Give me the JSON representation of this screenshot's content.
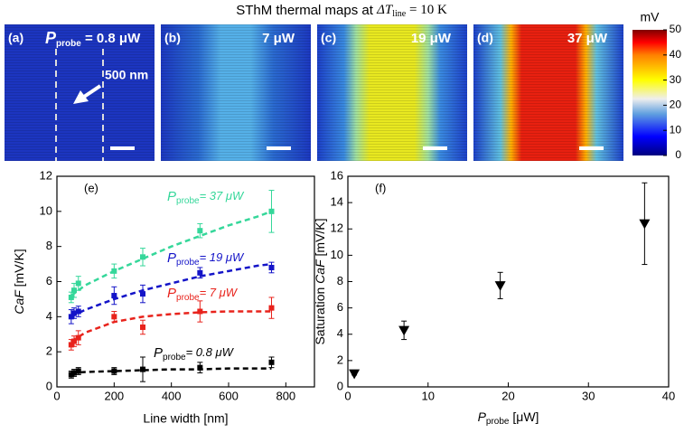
{
  "title": {
    "prefix": "SThM thermal maps at ",
    "symbol": "ΔT",
    "sub": "line",
    "suffix": " = 10 K"
  },
  "maps": [
    {
      "label": "(a)",
      "symbol": "P",
      "sub": "probe",
      "power": " = 0.8 μW",
      "annotation": "500 nm"
    },
    {
      "label": "(b)",
      "power": "7 μW"
    },
    {
      "label": "(c)",
      "power": "19 μW"
    },
    {
      "label": "(d)",
      "power": "37 μW"
    }
  ],
  "colorbar": {
    "unit": "mV",
    "lim": [
      0,
      50
    ],
    "ticks": [
      0,
      10,
      20,
      30,
      40,
      50
    ]
  },
  "chart_data": [
    {
      "type": "line",
      "panel": "(e)",
      "xlabel": "Line width [nm]",
      "ylabel_italic": "CaF",
      "ylabel_rest": " [mV/K]",
      "xlim": [
        0,
        900
      ],
      "xticks": [
        0,
        200,
        400,
        600,
        800
      ],
      "ylim": [
        0,
        12
      ],
      "yticks": [
        0,
        2,
        4,
        6,
        8,
        10,
        12
      ],
      "label_symbol": "P",
      "label_sub": "probe",
      "x": [
        50,
        60,
        75,
        200,
        300,
        500,
        750
      ],
      "fit_x": [
        50,
        100,
        200,
        300,
        400,
        500,
        600,
        700,
        750
      ],
      "series": [
        {
          "name": "= 37 μW",
          "color": "#35d79a",
          "values": [
            5.1,
            5.5,
            5.9,
            6.6,
            7.4,
            8.9,
            10.0
          ],
          "errors": [
            0.3,
            0.4,
            0.4,
            0.4,
            0.5,
            0.4,
            1.2
          ],
          "fit": [
            5.2,
            5.8,
            6.6,
            7.3,
            8.0,
            8.6,
            9.2,
            9.7,
            10.0
          ]
        },
        {
          "name": "= 19 μW",
          "color": "#1414c8",
          "values": [
            4.0,
            4.2,
            4.3,
            5.2,
            5.3,
            6.5,
            6.8
          ],
          "errors": [
            0.4,
            0.3,
            0.3,
            0.5,
            0.5,
            0.3,
            0.3
          ],
          "fit": [
            4.0,
            4.4,
            5.0,
            5.5,
            5.9,
            6.3,
            6.6,
            6.9,
            7.0
          ]
        },
        {
          "name": "= 7 μW",
          "color": "#e8231c",
          "values": [
            2.4,
            2.6,
            2.8,
            4.0,
            3.4,
            4.3,
            4.5
          ],
          "errors": [
            0.3,
            0.3,
            0.4,
            0.3,
            0.4,
            0.6,
            0.6
          ],
          "fit": [
            2.6,
            3.1,
            3.7,
            4.0,
            4.15,
            4.25,
            4.3,
            4.3,
            4.3
          ]
        },
        {
          "name": "= 0.8 μW",
          "color": "#000000",
          "values": [
            0.7,
            0.8,
            0.9,
            0.9,
            1.0,
            1.1,
            1.4
          ],
          "errors": [
            0.2,
            0.2,
            0.2,
            0.2,
            0.7,
            0.3,
            0.3
          ],
          "fit": [
            0.8,
            0.85,
            0.9,
            0.95,
            1.0,
            1.0,
            1.05,
            1.05,
            1.05
          ]
        }
      ]
    },
    {
      "type": "scatter",
      "panel": "(f)",
      "xlabel_symbol": "P",
      "xlabel_sub": "probe",
      "xlabel_rest": " [μW]",
      "ylabel_prefix": "Saturation ",
      "ylabel_italic": "CaF",
      "ylabel_rest": " [mV/K]",
      "xlim": [
        0,
        40
      ],
      "xticks": [
        0,
        10,
        20,
        30,
        40
      ],
      "ylim": [
        0,
        16
      ],
      "yticks": [
        0,
        2,
        4,
        6,
        8,
        10,
        12,
        14,
        16
      ],
      "color": "#000000",
      "x": [
        0.8,
        7,
        19,
        37
      ],
      "values": [
        1.0,
        4.3,
        7.7,
        12.4
      ],
      "errors": [
        0.1,
        0.7,
        1.0,
        3.1
      ]
    }
  ]
}
